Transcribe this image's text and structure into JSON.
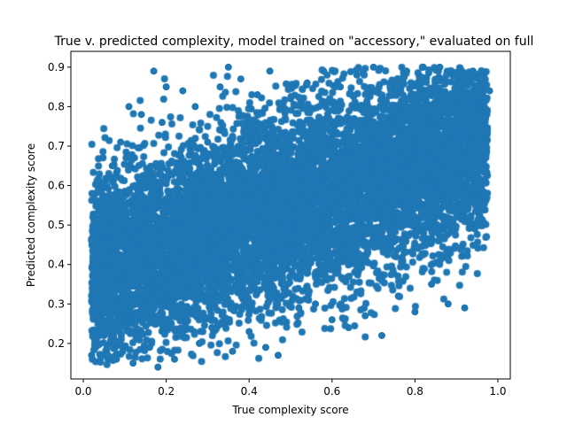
{
  "chart_data": {
    "type": "scatter",
    "title": "True v. predicted complexity, model trained on \"accessory,\" evaluated on full",
    "xlabel": "True complexity score",
    "ylabel": "Predicted complexity score",
    "xlim": [
      -0.03,
      1.03
    ],
    "ylim": [
      0.11,
      0.94
    ],
    "xticks": [
      0.0,
      0.2,
      0.4,
      0.6,
      0.8,
      1.0
    ],
    "xtick_labels": [
      "0.0",
      "0.2",
      "0.4",
      "0.6",
      "0.8",
      "1.0"
    ],
    "yticks": [
      0.2,
      0.3,
      0.4,
      0.5,
      0.6,
      0.7,
      0.8,
      0.9
    ],
    "ytick_labels": [
      "0.2",
      "0.3",
      "0.4",
      "0.5",
      "0.6",
      "0.7",
      "0.8",
      "0.9"
    ],
    "grid": false,
    "marker_color": "#1f77b4",
    "series": [
      {
        "points": [
          [
            0.02,
            0.17
          ],
          [
            0.02,
            0.46
          ],
          [
            0.03,
            0.29
          ],
          [
            0.04,
            0.37
          ],
          [
            0.05,
            0.22
          ],
          [
            0.06,
            0.57
          ],
          [
            0.07,
            0.65
          ],
          [
            0.08,
            0.16
          ],
          [
            0.09,
            0.71
          ],
          [
            0.1,
            0.3
          ],
          [
            0.11,
            0.8
          ],
          [
            0.12,
            0.15
          ],
          [
            0.13,
            0.53
          ],
          [
            0.14,
            0.78
          ],
          [
            0.15,
            0.6
          ],
          [
            0.16,
            0.19
          ],
          [
            0.17,
            0.89
          ],
          [
            0.18,
            0.14
          ],
          [
            0.19,
            0.76
          ],
          [
            0.2,
            0.85
          ],
          [
            0.21,
            0.34
          ],
          [
            0.22,
            0.16
          ],
          [
            0.24,
            0.84
          ],
          [
            0.25,
            0.28
          ],
          [
            0.27,
            0.8
          ],
          [
            0.28,
            0.2
          ],
          [
            0.3,
            0.71
          ],
          [
            0.31,
            0.24
          ],
          [
            0.33,
            0.85
          ],
          [
            0.35,
            0.9
          ],
          [
            0.36,
            0.18
          ],
          [
            0.38,
            0.87
          ],
          [
            0.4,
            0.23
          ],
          [
            0.42,
            0.83
          ],
          [
            0.44,
            0.19
          ],
          [
            0.45,
            0.89
          ],
          [
            0.47,
            0.17
          ],
          [
            0.5,
            0.82
          ],
          [
            0.52,
            0.29
          ],
          [
            0.54,
            0.86
          ],
          [
            0.56,
            0.3
          ],
          [
            0.58,
            0.89
          ],
          [
            0.6,
            0.26
          ],
          [
            0.62,
            0.85
          ],
          [
            0.64,
            0.24
          ],
          [
            0.66,
            0.88
          ],
          [
            0.68,
            0.27
          ],
          [
            0.7,
            0.9
          ],
          [
            0.72,
            0.22
          ],
          [
            0.74,
            0.85
          ],
          [
            0.76,
            0.32
          ],
          [
            0.78,
            0.89
          ],
          [
            0.8,
            0.28
          ],
          [
            0.82,
            0.9
          ],
          [
            0.84,
            0.35
          ],
          [
            0.86,
            0.9
          ],
          [
            0.88,
            0.3
          ],
          [
            0.9,
            0.88
          ],
          [
            0.92,
            0.29
          ],
          [
            0.94,
            0.89
          ],
          [
            0.96,
            0.54
          ],
          [
            0.97,
            0.77
          ],
          [
            0.98,
            0.84
          ],
          [
            0.97,
            0.7
          ]
        ]
      }
    ]
  }
}
